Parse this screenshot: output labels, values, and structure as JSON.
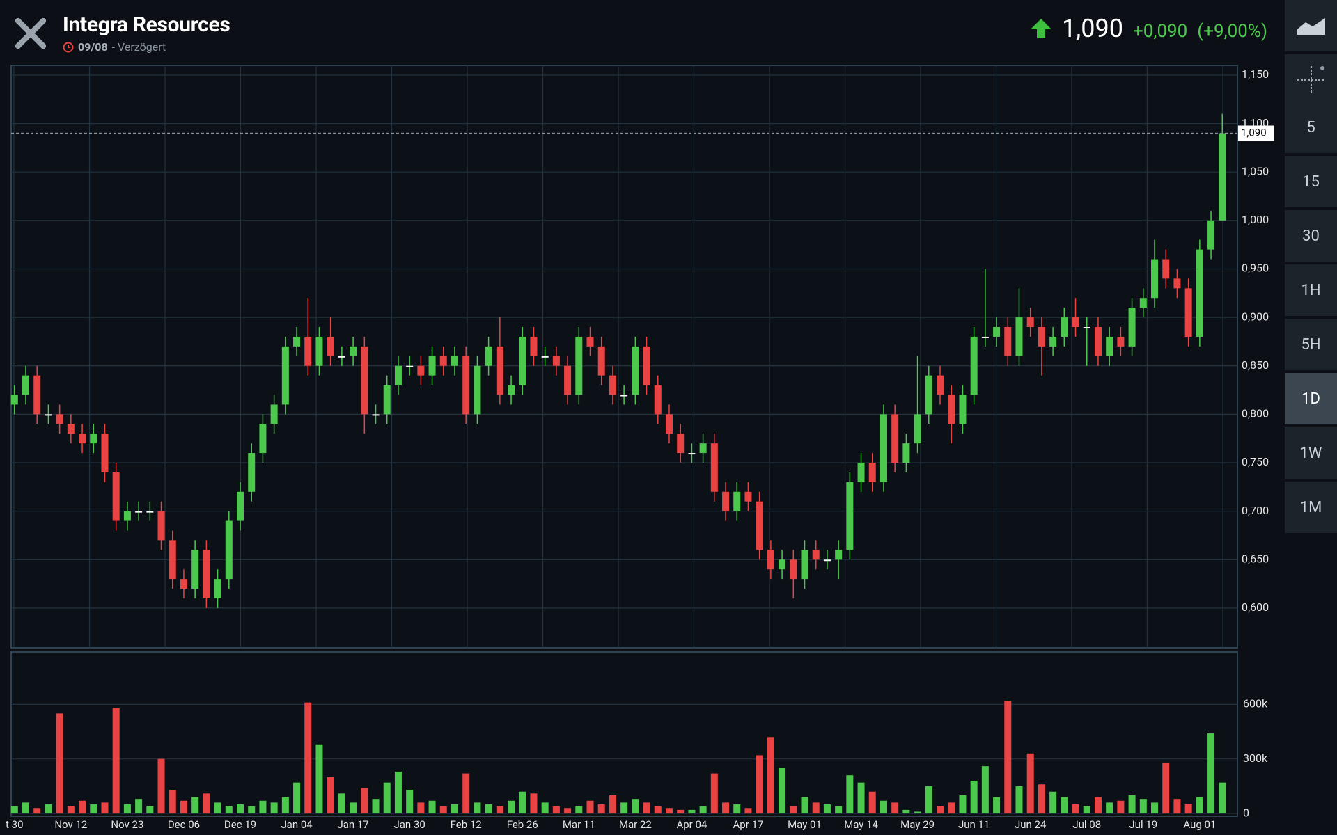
{
  "header": {
    "title": "Integra Resources",
    "date": "09/08",
    "delay": "- Verzögert",
    "price": "1,090",
    "change": "+0,090",
    "change_pct": "(+9,00%)"
  },
  "sidebar": {
    "intervals": [
      "5",
      "15",
      "30",
      "1H",
      "5H",
      "1D",
      "1W",
      "1M"
    ],
    "active_index": 5
  },
  "chart_data": {
    "type": "candlestick",
    "categories": [
      "t 30",
      null,
      null,
      null,
      null,
      "Nov 12",
      null,
      null,
      null,
      null,
      "Nov 23",
      null,
      null,
      null,
      null,
      "Dec 06",
      null,
      null,
      null,
      null,
      "Dec 19",
      null,
      null,
      null,
      null,
      "Jan 04",
      null,
      null,
      null,
      null,
      "Jan 17",
      null,
      null,
      null,
      null,
      "Jan 30",
      null,
      null,
      null,
      null,
      "Feb 12",
      null,
      null,
      null,
      null,
      "Feb 26",
      null,
      null,
      null,
      null,
      "Mar 11",
      null,
      null,
      null,
      null,
      "Mar 22",
      null,
      null,
      null,
      null,
      "Apr 04",
      null,
      null,
      null,
      null,
      "Apr 17",
      null,
      null,
      null,
      null,
      "May 01",
      null,
      null,
      null,
      null,
      "May 14",
      null,
      null,
      null,
      null,
      "May 29",
      null,
      null,
      null,
      null,
      "Jun 11",
      null,
      null,
      null,
      null,
      "Jun 24",
      null,
      null,
      null,
      null,
      "Jul 08",
      null,
      null,
      null,
      null,
      "Jul 19",
      null,
      null,
      null,
      null,
      "Aug 01",
      null,
      null
    ],
    "open": [
      0.81,
      0.82,
      0.84,
      0.8,
      0.8,
      0.79,
      0.78,
      0.77,
      0.78,
      0.74,
      0.69,
      0.7,
      0.7,
      0.7,
      0.67,
      0.63,
      0.62,
      0.66,
      0.61,
      0.63,
      0.69,
      0.72,
      0.76,
      0.79,
      0.81,
      0.87,
      0.88,
      0.85,
      0.88,
      0.86,
      0.86,
      0.87,
      0.8,
      0.8,
      0.83,
      0.85,
      0.85,
      0.84,
      0.86,
      0.85,
      0.86,
      0.8,
      0.85,
      0.87,
      0.82,
      0.83,
      0.88,
      0.86,
      0.86,
      0.85,
      0.82,
      0.88,
      0.87,
      0.84,
      0.82,
      0.82,
      0.87,
      0.83,
      0.8,
      0.78,
      0.76,
      0.76,
      0.77,
      0.72,
      0.7,
      0.72,
      0.71,
      0.66,
      0.64,
      0.65,
      0.63,
      0.66,
      0.65,
      0.65,
      0.66,
      0.73,
      0.75,
      0.73,
      0.8,
      0.75,
      0.77,
      0.8,
      0.84,
      0.82,
      0.79,
      0.82,
      0.88,
      0.88,
      0.89,
      0.86,
      0.9,
      0.89,
      0.87,
      0.88,
      0.9,
      0.89,
      0.89,
      0.86,
      0.88,
      0.87,
      0.91,
      0.92,
      0.96,
      0.94,
      0.93,
      0.88,
      0.97,
      1.0
    ],
    "high": [
      0.83,
      0.85,
      0.85,
      0.81,
      0.81,
      0.8,
      0.79,
      0.79,
      0.79,
      0.75,
      0.71,
      0.71,
      0.71,
      0.71,
      0.68,
      0.64,
      0.67,
      0.67,
      0.64,
      0.7,
      0.73,
      0.77,
      0.8,
      0.82,
      0.88,
      0.89,
      0.92,
      0.89,
      0.9,
      0.87,
      0.88,
      0.88,
      0.81,
      0.84,
      0.86,
      0.86,
      0.86,
      0.87,
      0.87,
      0.87,
      0.87,
      0.86,
      0.88,
      0.9,
      0.84,
      0.89,
      0.89,
      0.87,
      0.87,
      0.86,
      0.89,
      0.89,
      0.88,
      0.85,
      0.83,
      0.88,
      0.88,
      0.84,
      0.81,
      0.79,
      0.77,
      0.78,
      0.78,
      0.73,
      0.73,
      0.73,
      0.72,
      0.67,
      0.66,
      0.66,
      0.67,
      0.67,
      0.66,
      0.67,
      0.74,
      0.76,
      0.76,
      0.81,
      0.81,
      0.78,
      0.86,
      0.85,
      0.85,
      0.83,
      0.83,
      0.89,
      0.95,
      0.9,
      0.9,
      0.93,
      0.91,
      0.9,
      0.89,
      0.91,
      0.92,
      0.9,
      0.9,
      0.89,
      0.89,
      0.92,
      0.93,
      0.98,
      0.97,
      0.95,
      0.94,
      0.98,
      1.01,
      1.11
    ],
    "low": [
      0.8,
      0.81,
      0.79,
      0.79,
      0.78,
      0.77,
      0.76,
      0.76,
      0.73,
      0.68,
      0.68,
      0.69,
      0.69,
      0.66,
      0.62,
      0.61,
      0.61,
      0.6,
      0.6,
      0.62,
      0.68,
      0.71,
      0.75,
      0.78,
      0.8,
      0.86,
      0.84,
      0.84,
      0.85,
      0.85,
      0.85,
      0.78,
      0.79,
      0.79,
      0.82,
      0.84,
      0.83,
      0.83,
      0.84,
      0.84,
      0.79,
      0.79,
      0.84,
      0.81,
      0.81,
      0.82,
      0.85,
      0.85,
      0.84,
      0.81,
      0.81,
      0.86,
      0.83,
      0.81,
      0.81,
      0.81,
      0.82,
      0.79,
      0.77,
      0.75,
      0.75,
      0.75,
      0.71,
      0.69,
      0.69,
      0.7,
      0.65,
      0.63,
      0.63,
      0.61,
      0.62,
      0.64,
      0.64,
      0.63,
      0.65,
      0.72,
      0.72,
      0.72,
      0.74,
      0.74,
      0.76,
      0.79,
      0.81,
      0.77,
      0.78,
      0.81,
      0.87,
      0.87,
      0.85,
      0.85,
      0.88,
      0.84,
      0.86,
      0.87,
      0.88,
      0.85,
      0.85,
      0.85,
      0.86,
      0.86,
      0.9,
      0.91,
      0.93,
      0.92,
      0.87,
      0.87,
      0.96,
      1.0
    ],
    "close": [
      0.82,
      0.84,
      0.8,
      0.8,
      0.79,
      0.78,
      0.77,
      0.78,
      0.74,
      0.69,
      0.7,
      0.7,
      0.7,
      0.67,
      0.63,
      0.62,
      0.66,
      0.61,
      0.63,
      0.69,
      0.72,
      0.76,
      0.79,
      0.81,
      0.87,
      0.88,
      0.85,
      0.88,
      0.86,
      0.86,
      0.87,
      0.8,
      0.8,
      0.83,
      0.85,
      0.85,
      0.84,
      0.86,
      0.85,
      0.86,
      0.8,
      0.85,
      0.87,
      0.82,
      0.83,
      0.88,
      0.86,
      0.86,
      0.85,
      0.82,
      0.88,
      0.87,
      0.84,
      0.82,
      0.82,
      0.87,
      0.83,
      0.8,
      0.78,
      0.76,
      0.76,
      0.77,
      0.72,
      0.7,
      0.72,
      0.71,
      0.66,
      0.64,
      0.65,
      0.63,
      0.66,
      0.65,
      0.65,
      0.66,
      0.73,
      0.75,
      0.73,
      0.8,
      0.75,
      0.77,
      0.8,
      0.84,
      0.82,
      0.79,
      0.82,
      0.88,
      0.88,
      0.89,
      0.86,
      0.9,
      0.89,
      0.87,
      0.88,
      0.9,
      0.89,
      0.89,
      0.86,
      0.88,
      0.87,
      0.91,
      0.92,
      0.96,
      0.94,
      0.93,
      0.88,
      0.97,
      1.0,
      1.09
    ],
    "volume": [
      40000,
      60000,
      30000,
      50000,
      550000,
      40000,
      70000,
      50000,
      60000,
      580000,
      50000,
      80000,
      40000,
      300000,
      130000,
      70000,
      90000,
      110000,
      60000,
      40000,
      50000,
      40000,
      70000,
      60000,
      90000,
      170000,
      610000,
      380000,
      200000,
      110000,
      60000,
      140000,
      80000,
      170000,
      230000,
      130000,
      60000,
      70000,
      40000,
      50000,
      220000,
      60000,
      50000,
      40000,
      70000,
      120000,
      110000,
      60000,
      40000,
      30000,
      40000,
      70000,
      50000,
      100000,
      60000,
      80000,
      60000,
      40000,
      30000,
      20000,
      20000,
      40000,
      220000,
      60000,
      50000,
      30000,
      320000,
      420000,
      250000,
      40000,
      90000,
      60000,
      50000,
      40000,
      210000,
      170000,
      120000,
      70000,
      60000,
      20000,
      10000,
      150000,
      40000,
      60000,
      100000,
      180000,
      260000,
      90000,
      620000,
      150000,
      330000,
      160000,
      120000,
      90000,
      50000,
      40000,
      90000,
      60000,
      70000,
      100000,
      80000,
      60000,
      280000,
      80000,
      50000,
      90000,
      440000,
      170000
    ],
    "up_color": "#4cc94c",
    "down_color": "#e94343",
    "ylim": [
      0.559,
      1.16
    ],
    "yticks": [
      {
        "value": 0.6,
        "label": "0,600"
      },
      {
        "value": 0.65,
        "label": "0,650"
      },
      {
        "value": 0.7,
        "label": "0,700"
      },
      {
        "value": 0.75,
        "label": "0,750"
      },
      {
        "value": 0.8,
        "label": "0,800"
      },
      {
        "value": 0.85,
        "label": "0,850"
      },
      {
        "value": 0.9,
        "label": "0,900"
      },
      {
        "value": 0.95,
        "label": "0,950"
      },
      {
        "value": 1.0,
        "label": "1,000"
      },
      {
        "value": 1.05,
        "label": "1,050"
      },
      {
        "value": 1.1,
        "label": "1,100"
      },
      {
        "value": 1.15,
        "label": "1,150"
      }
    ],
    "last_price": {
      "value": 1.09,
      "label": "1,090"
    },
    "volume_ylim": [
      -15000,
      888000
    ],
    "volume_yticks": [
      0,
      {
        "value": 300000,
        "label": "300k"
      },
      {
        "value": 600000,
        "label": "600k"
      }
    ],
    "grid": true
  }
}
